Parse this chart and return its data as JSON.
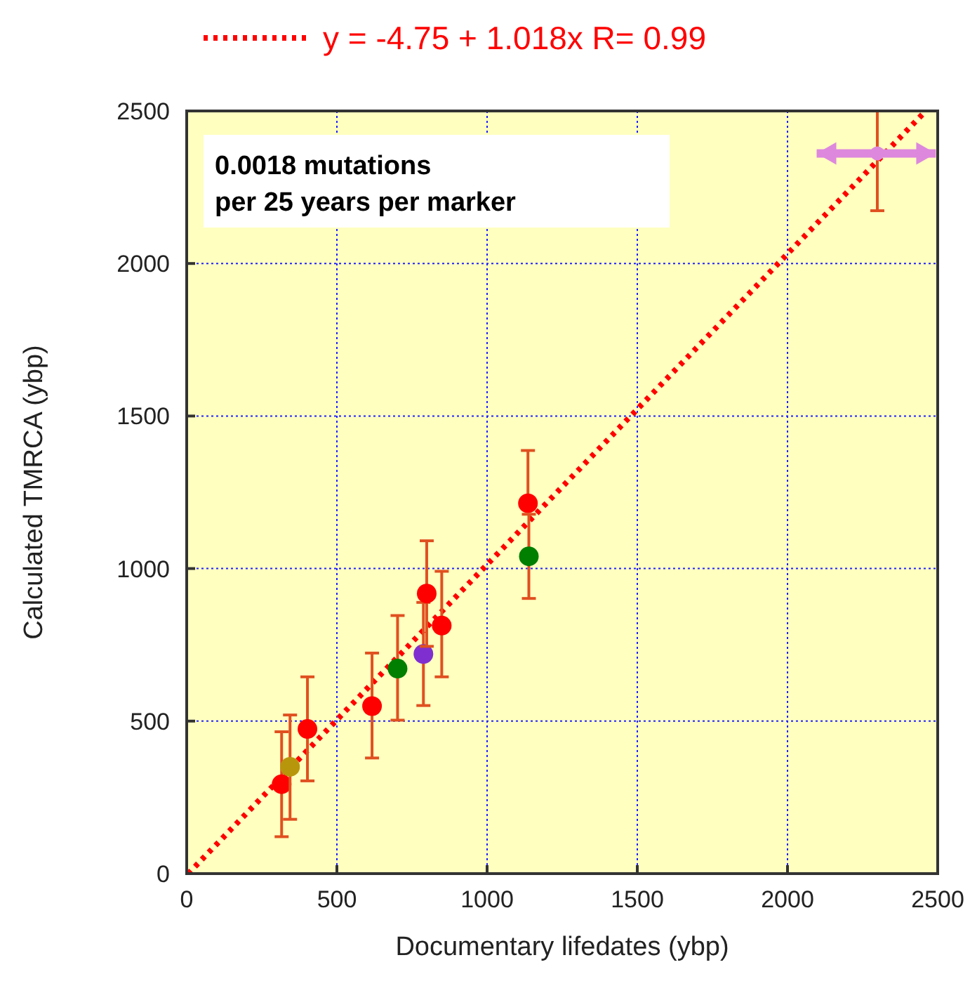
{
  "chart_data": {
    "type": "scatter",
    "xlabel": "Documentary  lifedates (ybp)",
    "ylabel": "Calculated TMRCA (ybp)",
    "xlim": [
      0,
      2500
    ],
    "ylim": [
      0,
      2500
    ],
    "xticks": [
      0,
      500,
      1000,
      1500,
      2000,
      2500
    ],
    "yticks": [
      0,
      500,
      1000,
      1500,
      2000,
      2500
    ],
    "grid": true,
    "legend": "top",
    "annotations": [
      "0.0018 mutations\nper 25 years per marker"
    ],
    "series": [
      {
        "type": "line",
        "name": "y = -4.75 + 1.018x   R= 0.99",
        "color": "#ff0000",
        "line_style": "dotted",
        "x": [
          5,
          2460
        ],
        "values": [
          0,
          2500
        ]
      },
      {
        "marker": "circle",
        "x": [
          316,
          344,
          402,
          617,
          702,
          788,
          799,
          849,
          1136,
          1139
        ],
        "values": [
          293,
          350,
          474,
          549,
          672,
          720,
          918,
          813,
          1214,
          1040
        ],
        "colors": [
          "#ff0000",
          "#b8960c",
          "#ff0000",
          "#ff0000",
          "#007f00",
          "#7f2fd0",
          "#ff0000",
          "#ff0000",
          "#ff0000",
          "#007f00"
        ],
        "errors": [
          [
            121,
            465
          ],
          [
            178,
            520
          ],
          [
            304,
            645
          ],
          [
            379,
            723
          ],
          [
            503,
            846
          ],
          [
            551,
            889
          ],
          [
            745,
            1091
          ],
          [
            645,
            991
          ],
          [
            1214,
            1387
          ],
          [
            902,
            1178
          ]
        ]
      },
      {
        "marker": "circle",
        "color": "#dd88dd",
        "x": [
          2299
        ],
        "values": [
          2361
        ],
        "errors": [
          [
            2173,
            2500
          ]
        ],
        "xerrors": [
          [
            2097,
            2494
          ]
        ]
      }
    ]
  }
}
